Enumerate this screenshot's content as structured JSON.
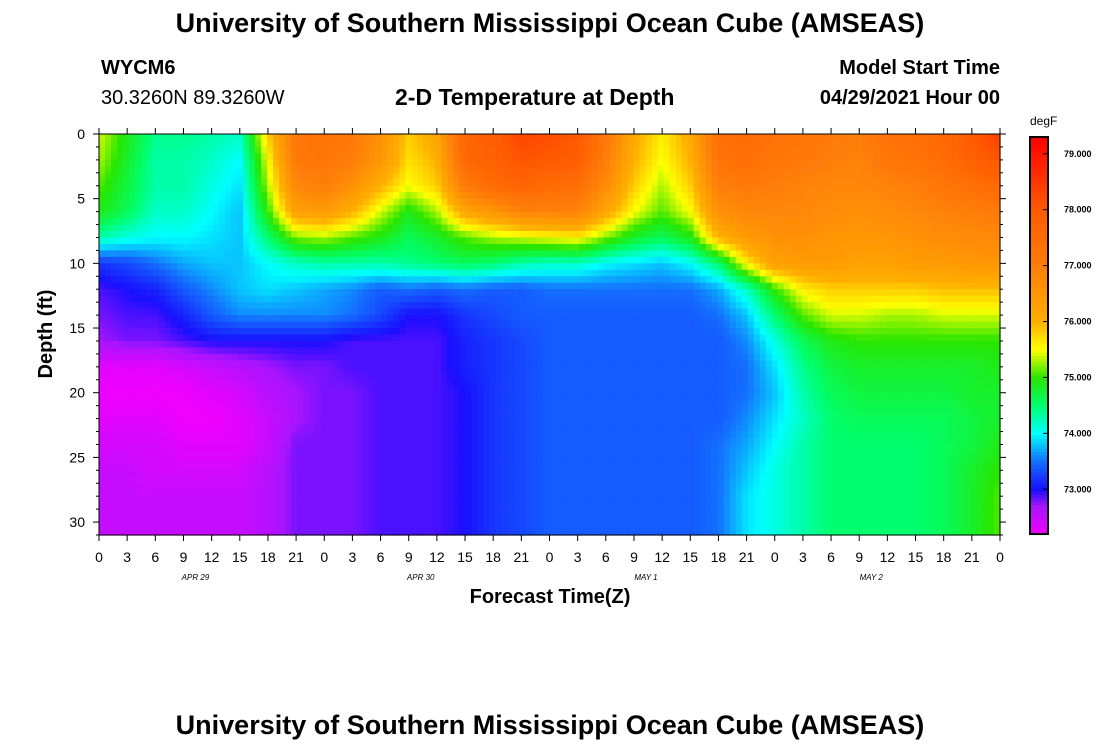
{
  "header": {
    "title": "University of Southern Mississippi Ocean Cube (AMSEAS)",
    "station": "WYCM6",
    "coords": "30.3260N  89.3260W",
    "plot_title": "2-D Temperature at Depth",
    "model_label": "Model Start Time",
    "model_time": "04/29/2021 Hour 00"
  },
  "footer": {
    "title": "University of Southern Mississippi Ocean Cube (AMSEAS)"
  },
  "chart_data": {
    "type": "heatmap",
    "title": "2-D Temperature at Depth",
    "xlabel": "Forecast Time(Z)",
    "ylabel": "Depth (ft)",
    "x": [
      0,
      3,
      6,
      9,
      12,
      15,
      18,
      21,
      24,
      27,
      30,
      33,
      36,
      39,
      42,
      45,
      48,
      51,
      54,
      57,
      60,
      63,
      66,
      69,
      72,
      75,
      78,
      81,
      84,
      87,
      90,
      93,
      96
    ],
    "x_tick_labels": [
      "0",
      "3",
      "6",
      "9",
      "12",
      "15",
      "18",
      "21",
      "0",
      "3",
      "6",
      "9",
      "12",
      "15",
      "18",
      "21",
      "0",
      "3",
      "6",
      "9",
      "12",
      "15",
      "18",
      "21",
      "0",
      "3",
      "6",
      "9",
      "12",
      "15",
      "18",
      "21",
      "0"
    ],
    "day_labels": [
      {
        "label": "APR 29",
        "x": 9
      },
      {
        "label": "APR 30",
        "x": 33
      },
      {
        "label": "MAY 1",
        "x": 57
      },
      {
        "label": "MAY 2",
        "x": 81
      }
    ],
    "y": [
      0,
      2,
      4,
      6,
      8,
      10,
      12,
      14,
      16,
      18,
      20,
      22,
      24,
      26,
      28,
      30
    ],
    "y_ticks": [
      0,
      5,
      10,
      15,
      20,
      25,
      30
    ],
    "ylim": [
      0,
      31
    ],
    "xlim": [
      0,
      96
    ],
    "colorbar": {
      "unit": "degF",
      "ticks": [
        "79.000",
        "78.000",
        "77.000",
        "76.000",
        "75.000",
        "74.000",
        "73.000"
      ],
      "tick_values": [
        79,
        78,
        77,
        76,
        75,
        74,
        73
      ],
      "range": [
        72.2,
        79.3
      ]
    },
    "z": [
      [
        75.4,
        74.9,
        74.4,
        74.4,
        74.3,
        74.2,
        75.8,
        77.2,
        77.3,
        77.1,
        76.6,
        75.8,
        76.2,
        77.7,
        77.9,
        78.3,
        78.2,
        78.0,
        77.2,
        76.1,
        75.6,
        76.1,
        77.4,
        77.5,
        77.3,
        77.2,
        77.1,
        77.0,
        77.3,
        77.4,
        77.6,
        78.0,
        78.4
      ],
      [
        75.3,
        74.8,
        74.3,
        74.3,
        74.2,
        74.0,
        75.5,
        77.1,
        77.2,
        77.0,
        76.5,
        75.7,
        76.0,
        77.6,
        77.8,
        78.1,
        78.0,
        77.9,
        77.0,
        76.0,
        75.5,
        76.0,
        77.3,
        77.4,
        77.2,
        77.1,
        77.0,
        76.9,
        77.2,
        77.3,
        77.5,
        77.8,
        78.1
      ],
      [
        75.1,
        74.7,
        74.3,
        74.3,
        74.1,
        73.9,
        75.3,
        76.8,
        77.0,
        76.6,
        76.0,
        75.5,
        75.8,
        77.1,
        77.5,
        77.7,
        77.5,
        77.4,
        76.7,
        75.8,
        75.3,
        75.8,
        77.0,
        77.1,
        77.0,
        76.9,
        76.8,
        76.8,
        76.9,
        77.0,
        77.2,
        77.4,
        77.6
      ],
      [
        74.9,
        74.6,
        74.2,
        74.2,
        74.0,
        73.8,
        75.0,
        76.3,
        76.4,
        76.0,
        75.4,
        74.9,
        75.3,
        76.2,
        76.5,
        76.9,
        76.9,
        76.9,
        76.2,
        75.5,
        75.1,
        75.5,
        76.6,
        76.8,
        76.8,
        76.8,
        76.7,
        76.6,
        76.7,
        76.8,
        76.9,
        77.0,
        77.1
      ],
      [
        74.3,
        74.1,
        74.0,
        74.0,
        73.9,
        73.8,
        74.5,
        75.2,
        75.3,
        75.1,
        74.9,
        74.6,
        74.8,
        75.1,
        75.3,
        75.4,
        75.5,
        75.6,
        75.2,
        74.8,
        74.6,
        74.9,
        76.0,
        76.4,
        76.6,
        76.6,
        76.5,
        76.5,
        76.5,
        76.6,
        76.7,
        76.7,
        76.8
      ],
      [
        73.2,
        73.3,
        73.5,
        73.7,
        73.8,
        73.8,
        74.0,
        74.2,
        74.3,
        74.3,
        74.3,
        74.4,
        74.5,
        74.6,
        74.5,
        74.3,
        74.2,
        74.2,
        74.0,
        73.9,
        73.8,
        74.0,
        74.5,
        75.6,
        76.3,
        76.4,
        76.4,
        76.3,
        76.3,
        76.4,
        76.4,
        76.5,
        76.5
      ],
      [
        72.9,
        73.0,
        73.1,
        73.4,
        73.6,
        73.8,
        73.9,
        73.8,
        73.7,
        73.6,
        73.4,
        73.5,
        73.4,
        73.5,
        73.4,
        73.4,
        73.5,
        73.5,
        73.5,
        73.5,
        73.5,
        73.5,
        73.7,
        74.2,
        75.0,
        75.6,
        75.8,
        75.8,
        75.8,
        75.8,
        75.9,
        75.9,
        75.9
      ],
      [
        72.8,
        72.9,
        72.9,
        73.1,
        73.4,
        73.6,
        73.6,
        73.6,
        73.6,
        73.5,
        73.3,
        73.0,
        73.0,
        73.2,
        73.3,
        73.4,
        73.4,
        73.4,
        73.4,
        73.4,
        73.4,
        73.4,
        73.5,
        73.8,
        74.5,
        75.1,
        75.4,
        75.4,
        75.3,
        75.3,
        75.4,
        75.4,
        75.4
      ],
      [
        72.7,
        72.8,
        72.8,
        72.9,
        73.0,
        73.0,
        73.0,
        73.0,
        73.0,
        72.9,
        72.9,
        72.9,
        72.9,
        73.1,
        73.2,
        73.3,
        73.4,
        73.4,
        73.4,
        73.4,
        73.4,
        73.4,
        73.4,
        73.6,
        74.1,
        74.6,
        74.9,
        75.0,
        75.0,
        75.0,
        75.0,
        75.0,
        75.0
      ],
      [
        72.3,
        72.3,
        72.3,
        72.4,
        72.5,
        72.6,
        72.7,
        72.8,
        72.8,
        72.9,
        72.9,
        72.9,
        72.9,
        73.1,
        73.2,
        73.3,
        73.4,
        73.4,
        73.4,
        73.4,
        73.4,
        73.4,
        73.4,
        73.5,
        73.9,
        74.4,
        74.7,
        74.8,
        74.8,
        74.8,
        74.8,
        74.8,
        74.9
      ],
      [
        72.2,
        72.2,
        72.2,
        72.2,
        72.3,
        72.4,
        72.6,
        72.7,
        72.8,
        72.8,
        72.9,
        72.9,
        72.9,
        73.0,
        73.2,
        73.3,
        73.4,
        73.4,
        73.4,
        73.4,
        73.4,
        73.4,
        73.4,
        73.5,
        73.8,
        74.3,
        74.6,
        74.7,
        74.7,
        74.7,
        74.7,
        74.8,
        74.8
      ],
      [
        72.3,
        72.3,
        72.3,
        72.2,
        72.2,
        72.3,
        72.5,
        72.7,
        72.8,
        72.8,
        72.9,
        72.9,
        72.9,
        73.0,
        73.2,
        73.3,
        73.4,
        73.4,
        73.4,
        73.4,
        73.4,
        73.4,
        73.4,
        73.6,
        73.9,
        74.2,
        74.5,
        74.6,
        74.6,
        74.6,
        74.6,
        74.7,
        74.8
      ],
      [
        72.4,
        72.4,
        72.4,
        72.3,
        72.3,
        72.3,
        72.5,
        72.8,
        72.8,
        72.8,
        72.9,
        72.9,
        72.9,
        73.0,
        73.2,
        73.3,
        73.4,
        73.4,
        73.4,
        73.4,
        73.4,
        73.4,
        73.5,
        73.7,
        74.0,
        74.3,
        74.5,
        74.5,
        74.5,
        74.5,
        74.6,
        74.7,
        74.9
      ],
      [
        72.5,
        72.5,
        72.4,
        72.4,
        72.4,
        72.4,
        72.6,
        72.8,
        72.8,
        72.8,
        72.9,
        72.9,
        72.9,
        73.0,
        73.2,
        73.3,
        73.4,
        73.4,
        73.4,
        73.4,
        73.4,
        73.4,
        73.5,
        73.8,
        74.1,
        74.3,
        74.5,
        74.5,
        74.5,
        74.5,
        74.6,
        74.8,
        75.0
      ],
      [
        72.5,
        72.5,
        72.5,
        72.5,
        72.5,
        72.5,
        72.6,
        72.8,
        72.8,
        72.8,
        72.9,
        72.9,
        72.9,
        73.0,
        73.2,
        73.3,
        73.4,
        73.4,
        73.4,
        73.4,
        73.4,
        73.4,
        73.5,
        73.9,
        74.1,
        74.3,
        74.5,
        74.5,
        74.5,
        74.5,
        74.6,
        74.8,
        75.1
      ],
      [
        72.5,
        72.5,
        72.5,
        72.5,
        72.5,
        72.5,
        72.6,
        72.8,
        72.8,
        72.8,
        72.9,
        72.9,
        72.9,
        73.0,
        73.2,
        73.3,
        73.4,
        73.4,
        73.4,
        73.4,
        73.4,
        73.4,
        73.5,
        73.9,
        74.1,
        74.3,
        74.5,
        74.5,
        74.5,
        74.5,
        74.6,
        74.8,
        75.1
      ]
    ]
  }
}
